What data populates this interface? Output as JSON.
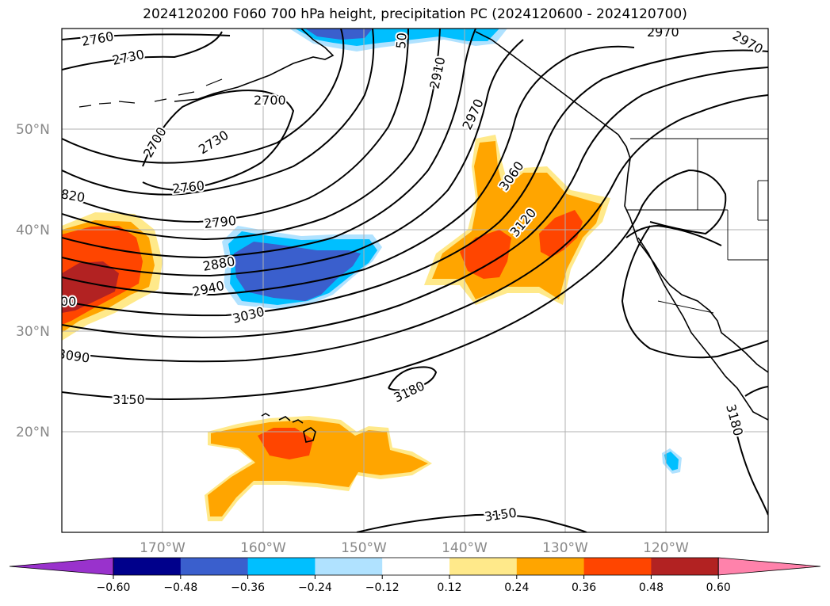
{
  "title": "2024120200 F060 700 hPa height, precipitation PC (2024120600 - 2024120700)",
  "map": {
    "latitude_labels": [
      "50°N",
      "40°N",
      "30°N",
      "20°N"
    ],
    "longitude_labels": [
      "170°W",
      "160°W",
      "150°W",
      "140°W",
      "130°W",
      "120°W"
    ],
    "contour_labels": [
      "2760",
      "2730",
      "2700",
      "2730",
      "2700",
      "2760",
      "2790",
      "2880",
      "2940",
      "3030",
      "3090",
      "3150",
      "3180",
      "3150",
      "3180",
      "2910",
      "2970",
      "3060",
      "3120",
      "2970",
      "2970",
      "820",
      "00",
      "50"
    ]
  },
  "colorbar": {
    "tick_labels": [
      "−0.60",
      "−0.48",
      "−0.36",
      "−0.24",
      "−0.12",
      "0.12",
      "0.24",
      "0.36",
      "0.48",
      "0.60"
    ],
    "colors": [
      "#9932cc",
      "#00008b",
      "#3a5fcd",
      "#00bfff",
      "#b0e2ff",
      "#ffffff",
      "#ffe98a",
      "#ffa500",
      "#ff4500",
      "#b22222",
      "#ff82ab"
    ]
  }
}
